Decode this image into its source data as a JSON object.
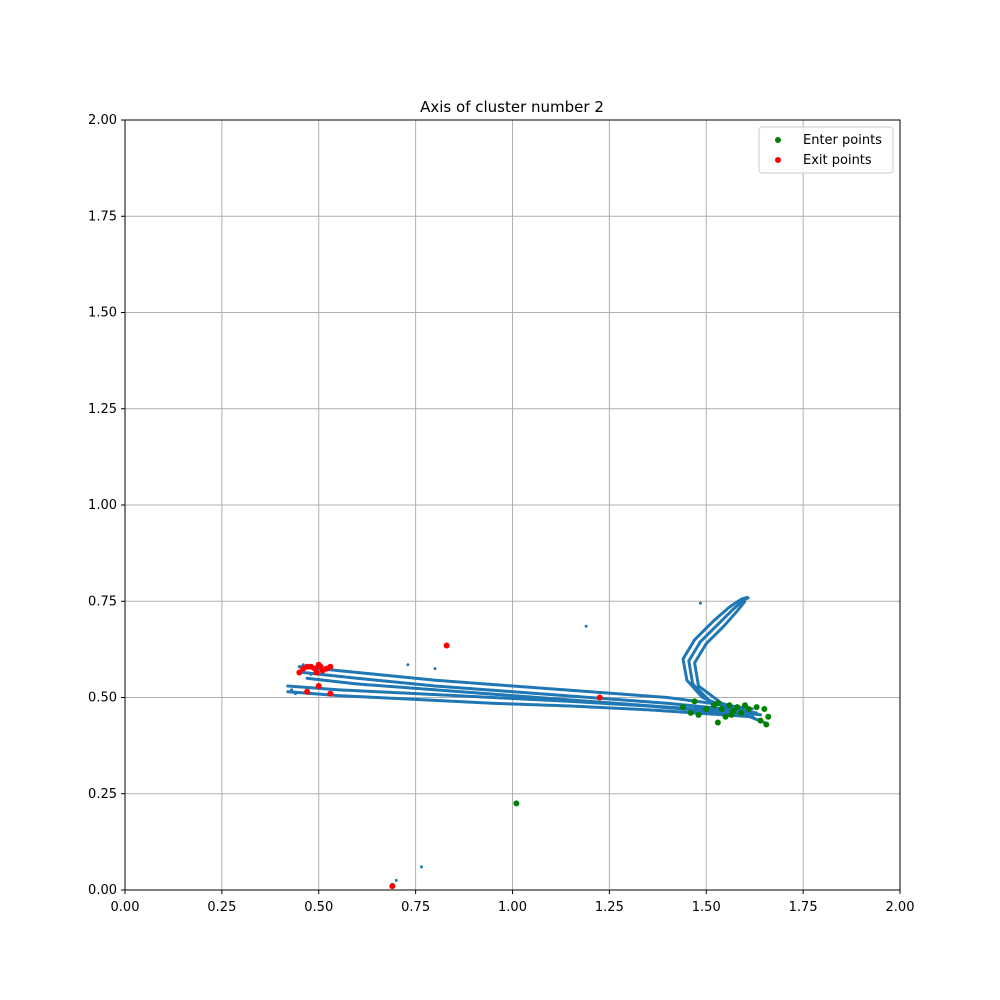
{
  "chart_data": {
    "type": "scatter",
    "title": "Axis of cluster number 2",
    "xlabel": "",
    "ylabel": "",
    "xlim": [
      0,
      2
    ],
    "ylim": [
      0,
      2
    ],
    "xticks": [
      "0.00",
      "0.25",
      "0.50",
      "0.75",
      "1.00",
      "1.25",
      "1.50",
      "1.75",
      "2.00"
    ],
    "yticks": [
      "0.00",
      "0.25",
      "0.50",
      "0.75",
      "1.00",
      "1.25",
      "1.50",
      "1.75",
      "2.00"
    ],
    "grid": true,
    "legend_position": "top-right",
    "colors": {
      "trajectory": "#1f77b4",
      "enter": "#008000",
      "exit": "#ff0000",
      "grid": "#b0b0b0"
    },
    "trajectory_polylines": [
      [
        [
          0.45,
          0.58
        ],
        [
          0.6,
          0.565
        ],
        [
          0.8,
          0.545
        ],
        [
          1.0,
          0.53
        ],
        [
          1.2,
          0.515
        ],
        [
          1.4,
          0.5
        ],
        [
          1.55,
          0.48
        ],
        [
          1.62,
          0.47
        ]
      ],
      [
        [
          0.46,
          0.565
        ],
        [
          0.6,
          0.55
        ],
        [
          0.8,
          0.53
        ],
        [
          1.0,
          0.515
        ],
        [
          1.2,
          0.5
        ],
        [
          1.4,
          0.485
        ],
        [
          1.55,
          0.47
        ],
        [
          1.63,
          0.46
        ]
      ],
      [
        [
          0.47,
          0.55
        ],
        [
          0.6,
          0.535
        ],
        [
          0.8,
          0.52
        ],
        [
          1.0,
          0.505
        ],
        [
          1.2,
          0.49
        ],
        [
          1.4,
          0.475
        ],
        [
          1.55,
          0.465
        ],
        [
          1.64,
          0.455
        ]
      ],
      [
        [
          0.42,
          0.53
        ],
        [
          0.55,
          0.52
        ],
        [
          0.75,
          0.51
        ],
        [
          0.95,
          0.5
        ],
        [
          1.15,
          0.49
        ],
        [
          1.35,
          0.478
        ],
        [
          1.5,
          0.465
        ],
        [
          1.6,
          0.455
        ]
      ],
      [
        [
          0.42,
          0.515
        ],
        [
          0.55,
          0.505
        ],
        [
          0.75,
          0.495
        ],
        [
          0.95,
          0.485
        ],
        [
          1.15,
          0.478
        ],
        [
          1.35,
          0.468
        ],
        [
          1.5,
          0.458
        ],
        [
          1.62,
          0.45
        ]
      ],
      [
        [
          1.55,
          0.475
        ],
        [
          1.49,
          0.5
        ],
        [
          1.45,
          0.545
        ],
        [
          1.44,
          0.6
        ],
        [
          1.47,
          0.65
        ],
        [
          1.52,
          0.7
        ],
        [
          1.56,
          0.735
        ],
        [
          1.59,
          0.755
        ],
        [
          1.605,
          0.76
        ]
      ],
      [
        [
          1.58,
          0.468
        ],
        [
          1.51,
          0.49
        ],
        [
          1.465,
          0.535
        ],
        [
          1.455,
          0.595
        ],
        [
          1.485,
          0.645
        ],
        [
          1.53,
          0.69
        ],
        [
          1.57,
          0.73
        ],
        [
          1.595,
          0.752
        ],
        [
          1.61,
          0.76
        ]
      ],
      [
        [
          1.62,
          0.46
        ],
        [
          1.54,
          0.485
        ],
        [
          1.48,
          0.53
        ],
        [
          1.47,
          0.59
        ],
        [
          1.5,
          0.64
        ],
        [
          1.545,
          0.685
        ],
        [
          1.58,
          0.725
        ],
        [
          1.6,
          0.75
        ]
      ],
      [
        [
          1.65,
          0.435
        ],
        [
          1.6,
          0.455
        ],
        [
          1.55,
          0.46
        ],
        [
          1.5,
          0.465
        ]
      ]
    ],
    "trajectory_points": [
      [
        0.45,
        0.58
      ],
      [
        0.455,
        0.57
      ],
      [
        0.46,
        0.585
      ],
      [
        0.43,
        0.52
      ],
      [
        0.44,
        0.51
      ],
      [
        0.48,
        0.56
      ],
      [
        0.73,
        0.585
      ],
      [
        0.8,
        0.575
      ],
      [
        1.19,
        0.685
      ],
      [
        1.485,
        0.745
      ],
      [
        0.765,
        0.06
      ],
      [
        0.7,
        0.025
      ],
      [
        0.69,
        0.015
      ]
    ],
    "series": [
      {
        "name": "Enter points",
        "points": [
          [
            1.01,
            0.225
          ],
          [
            1.44,
            0.475
          ],
          [
            1.46,
            0.46
          ],
          [
            1.47,
            0.49
          ],
          [
            1.48,
            0.455
          ],
          [
            1.5,
            0.47
          ],
          [
            1.52,
            0.48
          ],
          [
            1.53,
            0.435
          ],
          [
            1.54,
            0.47
          ],
          [
            1.55,
            0.45
          ],
          [
            1.56,
            0.48
          ],
          [
            1.57,
            0.465
          ],
          [
            1.58,
            0.475
          ],
          [
            1.59,
            0.46
          ],
          [
            1.6,
            0.48
          ],
          [
            1.61,
            0.47
          ],
          [
            1.63,
            0.475
          ],
          [
            1.64,
            0.44
          ],
          [
            1.65,
            0.47
          ],
          [
            1.655,
            0.43
          ],
          [
            1.66,
            0.45
          ],
          [
            1.53,
            0.485
          ],
          [
            1.565,
            0.455
          ]
        ]
      },
      {
        "name": "Exit points",
        "points": [
          [
            0.45,
            0.565
          ],
          [
            0.46,
            0.575
          ],
          [
            0.47,
            0.58
          ],
          [
            0.48,
            0.58
          ],
          [
            0.49,
            0.575
          ],
          [
            0.5,
            0.585
          ],
          [
            0.51,
            0.57
          ],
          [
            0.52,
            0.575
          ],
          [
            0.53,
            0.58
          ],
          [
            0.5,
            0.53
          ],
          [
            0.47,
            0.515
          ],
          [
            0.53,
            0.51
          ],
          [
            0.83,
            0.635
          ],
          [
            1.225,
            0.5
          ],
          [
            0.69,
            0.01
          ],
          [
            0.505,
            0.58
          ],
          [
            0.495,
            0.565
          ]
        ]
      }
    ]
  }
}
